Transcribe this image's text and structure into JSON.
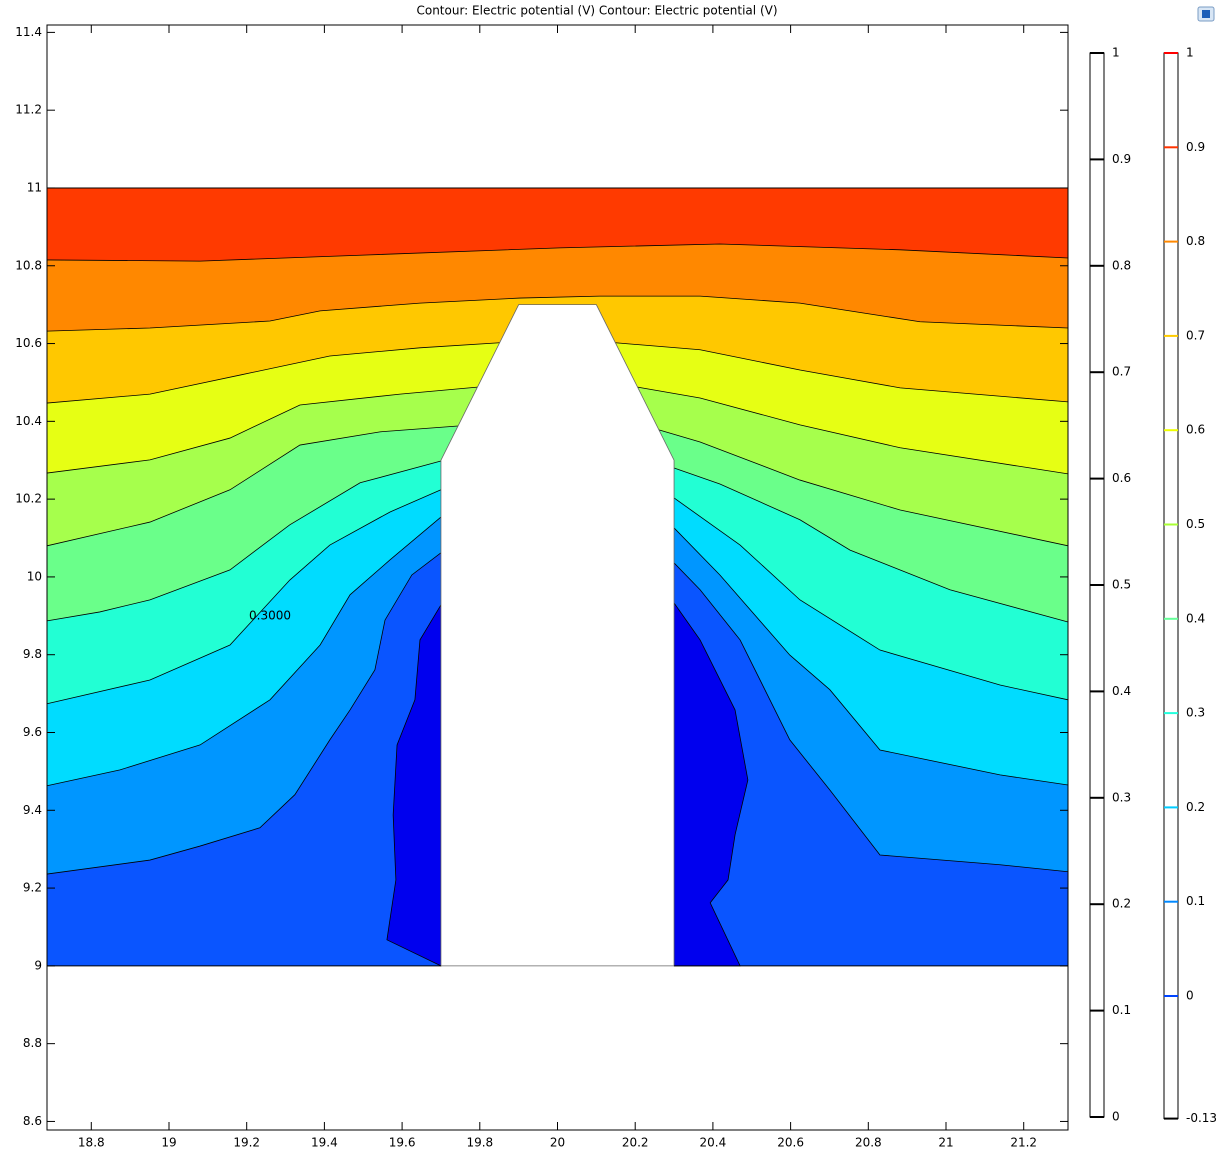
{
  "chart_data": {
    "type": "contour",
    "title": "Contour: Electric potential (V)  Contour: Electric potential (V)",
    "xlim": [
      18.686,
      21.314
    ],
    "ylim": [
      8.578,
      11.419
    ],
    "xticks": [
      18.8,
      19,
      19.2,
      19.4,
      19.6,
      19.8,
      20,
      20.2,
      20.4,
      20.6,
      20.8,
      21,
      21.2
    ],
    "yticks": [
      8.6,
      8.8,
      9,
      9.2,
      9.4,
      9.6,
      9.8,
      10,
      10.2,
      10.4,
      10.6,
      10.8,
      11,
      11.2,
      11.4
    ],
    "grid": false,
    "domain_ylim": [
      9,
      11
    ],
    "base_color": "#0a55ff",
    "hole": {
      "x": [
        19.7,
        19.7,
        19.9,
        20.1,
        20.3,
        20.3
      ],
      "y": [
        9,
        10.3,
        10.7,
        10.7,
        10.3,
        9
      ]
    },
    "contours": [
      {
        "level": 0.0,
        "closed": true,
        "fill": "#0000ee",
        "x": [
          19.7,
          19.646,
          19.633,
          19.587,
          19.577,
          19.584,
          19.561,
          19.7,
          null,
          20.3,
          20.367,
          20.457,
          20.49,
          20.457,
          20.439,
          20.393,
          20.47,
          20.3
        ],
        "y": [
          9.928,
          9.838,
          9.684,
          9.568,
          9.388,
          9.221,
          9.067,
          9.0,
          null,
          9.933,
          9.838,
          9.658,
          9.478,
          9.337,
          9.221,
          9.162,
          9.0,
          9.0
        ]
      },
      {
        "level": 0.1,
        "closed": false,
        "fill": "#0096ff",
        "x": [
          18.686,
          18.951,
          19.08,
          19.234,
          19.324,
          19.414,
          19.466,
          19.53,
          19.556,
          19.625,
          19.7,
          null,
          20.3,
          20.367,
          20.47,
          20.598,
          20.701,
          20.83,
          21.139,
          21.314
        ],
        "y": [
          9.236,
          9.272,
          9.308,
          9.355,
          9.44,
          9.581,
          9.658,
          9.761,
          9.889,
          10.005,
          10.062,
          null,
          10.036,
          9.967,
          9.838,
          9.581,
          9.452,
          9.285,
          9.26,
          9.242
        ]
      },
      {
        "level": 0.2,
        "closed": false,
        "fill": "#00dcff",
        "x": [
          18.686,
          18.874,
          19.08,
          19.26,
          19.389,
          19.466,
          19.569,
          19.7,
          null,
          20.3,
          20.418,
          20.598,
          20.701,
          20.83,
          21.139,
          21.314
        ],
        "y": [
          9.463,
          9.504,
          9.568,
          9.684,
          9.825,
          9.954,
          10.044,
          10.154,
          null,
          10.126,
          10.005,
          9.799,
          9.71,
          9.555,
          9.491,
          9.465
        ]
      },
      {
        "level": 0.3,
        "closed": false,
        "fill": "#22ffd4",
        "x": [
          18.686,
          18.951,
          19.157,
          19.311,
          19.414,
          19.569,
          19.7,
          null,
          20.3,
          20.47,
          20.624,
          20.83,
          21.139,
          21.314
        ],
        "y": [
          9.674,
          9.735,
          9.825,
          9.992,
          10.082,
          10.167,
          10.224,
          null,
          10.203,
          10.082,
          9.941,
          9.812,
          9.722,
          9.684
        ]
      },
      {
        "level": 0.4,
        "closed": false,
        "fill": "#6aff8a",
        "x": [
          18.686,
          18.822,
          18.951,
          19.157,
          19.311,
          19.492,
          19.7,
          null,
          20.3,
          20.418,
          20.624,
          20.753,
          21.01,
          21.314
        ],
        "y": [
          9.887,
          9.91,
          9.941,
          10.018,
          10.134,
          10.242,
          10.298,
          null,
          10.28,
          10.239,
          10.147,
          10.069,
          9.967,
          9.884
        ]
      },
      {
        "level": 0.5,
        "closed": false,
        "fill": "#a6ff4c",
        "x": [
          18.686,
          18.951,
          19.157,
          19.337,
          19.543,
          19.744,
          null,
          20.261,
          20.367,
          20.624,
          20.882,
          21.314
        ],
        "y": [
          10.08,
          10.141,
          10.224,
          10.339,
          10.373,
          10.388,
          null,
          10.378,
          10.347,
          10.249,
          10.172,
          10.08
        ]
      },
      {
        "level": 0.6,
        "closed": false,
        "fill": "#e6ff14",
        "x": [
          18.686,
          18.951,
          19.157,
          19.337,
          19.595,
          19.794,
          null,
          20.206,
          20.367,
          20.624,
          20.882,
          21.314
        ],
        "y": [
          10.267,
          10.301,
          10.357,
          10.442,
          10.47,
          10.488,
          null,
          10.488,
          10.46,
          10.391,
          10.332,
          10.265
        ]
      },
      {
        "level": 0.7,
        "closed": false,
        "fill": "#ffc800",
        "x": [
          18.686,
          18.951,
          19.183,
          19.414,
          19.646,
          19.851,
          null,
          20.149,
          20.367,
          20.624,
          20.882,
          21.314
        ],
        "y": [
          10.447,
          10.47,
          10.519,
          10.568,
          10.589,
          10.602,
          null,
          10.602,
          10.584,
          10.532,
          10.486,
          10.45
        ]
      },
      {
        "level": 0.8,
        "closed": false,
        "fill": "#ff8800",
        "x": [
          18.686,
          18.951,
          19.26,
          19.389,
          19.646,
          19.903,
          20.109,
          20.367,
          20.624,
          20.933,
          21.314
        ],
        "y": [
          10.632,
          10.64,
          10.658,
          10.684,
          10.704,
          10.717,
          10.722,
          10.722,
          10.704,
          10.656,
          10.64
        ]
      },
      {
        "level": 0.9,
        "closed": false,
        "fill": "#ff3a00",
        "x": [
          18.686,
          19.08,
          19.517,
          20.006,
          20.418,
          20.882,
          21.314
        ],
        "y": [
          10.815,
          10.812,
          10.828,
          10.846,
          10.856,
          10.841,
          10.82
        ]
      }
    ],
    "annotations": [
      {
        "text": "0.3000",
        "x": 19.26,
        "y": 9.9
      }
    ],
    "colorbars": [
      {
        "lim": [
          0,
          1
        ],
        "ticks": [
          0,
          0.1,
          0.2,
          0.3,
          0.4,
          0.5,
          0.6,
          0.7,
          0.8,
          0.9,
          1
        ],
        "tick_colors": [
          "#000000",
          "#000000",
          "#000000",
          "#000000",
          "#000000",
          "#000000",
          "#000000",
          "#000000",
          "#000000",
          "#000000",
          "#000000"
        ]
      },
      {
        "lim": [
          -0.13,
          1
        ],
        "ticks": [
          -0.13,
          0,
          0.1,
          0.2,
          0.3,
          0.4,
          0.5,
          0.6,
          0.7,
          0.8,
          0.9,
          1
        ],
        "tick_colors": [
          "#000000",
          "#0044ff",
          "#0088ff",
          "#00ccff",
          "#22ffdd",
          "#66ff99",
          "#aaff33",
          "#eeff00",
          "#ffcc00",
          "#ff8800",
          "#ff3300",
          "#ff0000"
        ]
      }
    ]
  }
}
